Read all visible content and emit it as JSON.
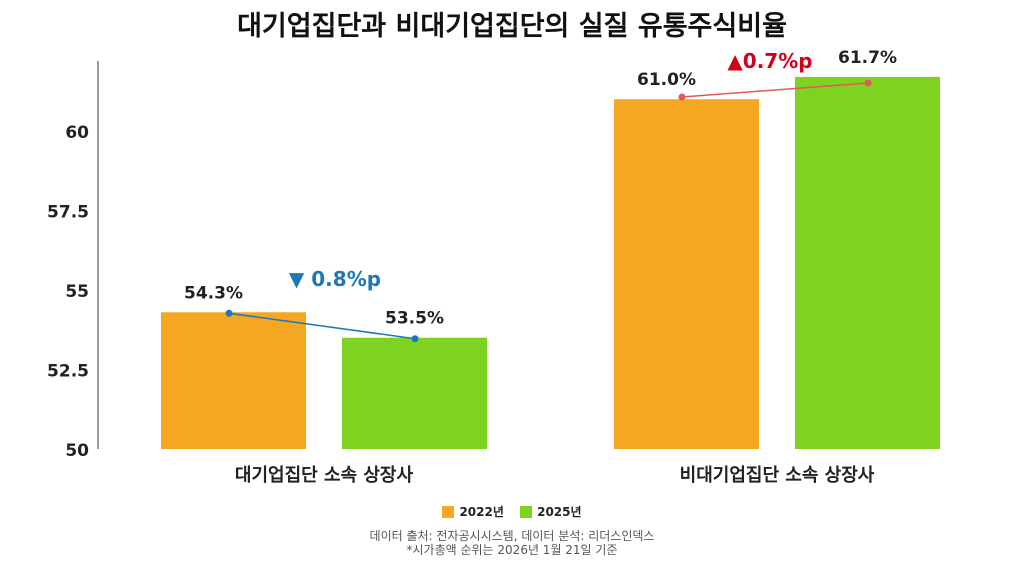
{
  "chart_data": {
    "type": "bar",
    "title": "대기업집단과 비대기업집단의 실질 유통주식비율",
    "categories": [
      "대기업집단 소속 상장사",
      "비대기업집단 소속 상장사"
    ],
    "series": [
      {
        "name": "2022년",
        "values": [
          54.3,
          61.0
        ],
        "labels": [
          "54.3%",
          "61.0%"
        ],
        "color": "#F5A623"
      },
      {
        "name": "2025년",
        "values": [
          53.5,
          61.7
        ],
        "labels": [
          "53.5%",
          "61.7%"
        ],
        "color": "#7ED321"
      }
    ],
    "ylim": [
      50,
      62.2
    ],
    "yticks": [
      50,
      52.5,
      55,
      57.5,
      60
    ],
    "ytick_labels": [
      "50",
      "52.5",
      "55",
      "57.5",
      "60"
    ],
    "grid": false,
    "legend": "bottom",
    "annotations": [
      {
        "text": "▼ 0.8%p",
        "color": "#1F78B4"
      },
      {
        "text": "▲0.7%p",
        "color": "#D0021B"
      }
    ],
    "connector_colors": [
      "#1F78B4",
      "#E05A5A"
    ]
  },
  "footer": {
    "source": "데이터 출처: 전자공시시스템, 데이터 분석: 리더스인덱스",
    "note": "*시가총액 순위는 2026년 1월 21일 기준"
  }
}
